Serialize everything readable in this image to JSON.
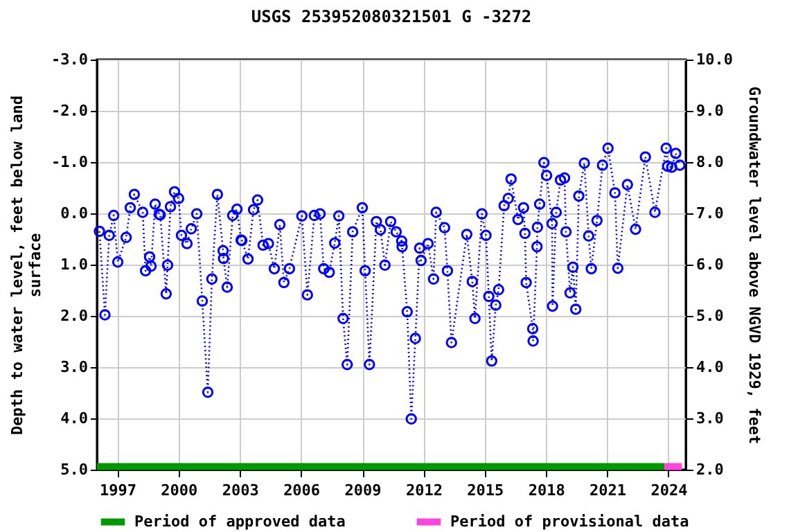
{
  "chart_data": {
    "type": "line",
    "title": "USGS 253952080321501 G  -3272",
    "xlabel": null,
    "ylabel": "Depth to water level, feet below land surface",
    "y2label": "Groundwater level above NGVD 1929, feet",
    "xlim": [
      1996,
      2024.85
    ],
    "xticks": [
      1997,
      2000,
      2003,
      2006,
      2009,
      2012,
      2015,
      2018,
      2021,
      2024
    ],
    "ylim": [
      5,
      -3
    ],
    "yticks": [
      {
        "value": -3,
        "label": "-3.0"
      },
      {
        "value": -2,
        "label": "-2.0"
      },
      {
        "value": -1,
        "label": "-1.0"
      },
      {
        "value": 0,
        "label": "0.0"
      },
      {
        "value": 1,
        "label": "1.0"
      },
      {
        "value": 2,
        "label": "2.0"
      },
      {
        "value": 3,
        "label": "3.0"
      },
      {
        "value": 4,
        "label": "4.0"
      },
      {
        "value": 5,
        "label": "5.0"
      }
    ],
    "y2lim": [
      2,
      10
    ],
    "y2ticks": [
      {
        "value": 2,
        "label": "2.0"
      },
      {
        "value": 3,
        "label": "3.0"
      },
      {
        "value": 4,
        "label": "4.0"
      },
      {
        "value": 5,
        "label": "5.0"
      },
      {
        "value": 6,
        "label": "6.0"
      },
      {
        "value": 7,
        "label": "7.0"
      },
      {
        "value": 8,
        "label": "8.0"
      },
      {
        "value": 9,
        "label": "9.0"
      },
      {
        "value": 10,
        "label": "10.0"
      }
    ],
    "grid": true,
    "legend": "bottom",
    "series": [
      {
        "color": "#0000ff",
        "marker": "circle",
        "line_style": "dotted",
        "x": [
          1996.12,
          1996.39,
          1996.6,
          1996.82,
          1997.02,
          1997.43,
          1997.63,
          1997.83,
          1998.24,
          1998.38,
          1998.58,
          1998.65,
          1998.85,
          1999.05,
          1999.1,
          1999.39,
          1999.46,
          1999.6,
          1999.8,
          2000.0,
          2000.14,
          2000.41,
          2000.62,
          2000.89,
          2001.16,
          2001.43,
          2001.63,
          2001.9,
          2002.18,
          2002.2,
          2002.38,
          2002.65,
          2002.86,
          2003.06,
          2003.1,
          2003.4,
          2003.67,
          2003.87,
          2004.14,
          2004.4,
          2004.69,
          2004.96,
          2005.16,
          2005.43,
          2006.04,
          2006.31,
          2006.65,
          2006.93,
          2007.11,
          2007.38,
          2007.65,
          2007.85,
          2008.06,
          2008.26,
          2008.53,
          2009.0,
          2009.14,
          2009.35,
          2009.69,
          2009.89,
          2010.11,
          2010.39,
          2010.66,
          2010.93,
          2010.95,
          2011.2,
          2011.4,
          2011.6,
          2011.81,
          2011.88,
          2012.22,
          2012.49,
          2012.62,
          2013.03,
          2013.17,
          2013.37,
          2014.12,
          2014.39,
          2014.52,
          2014.86,
          2015.06,
          2015.2,
          2015.34,
          2015.54,
          2015.68,
          2015.95,
          2016.15,
          2016.29,
          2016.63,
          2016.9,
          2016.97,
          2017.03,
          2017.35,
          2017.37,
          2017.56,
          2017.58,
          2017.69,
          2017.9,
          2018.03,
          2018.3,
          2018.32,
          2018.5,
          2018.71,
          2018.91,
          2018.98,
          2019.18,
          2019.32,
          2019.46,
          2019.61,
          2019.88,
          2020.09,
          2020.22,
          2020.5,
          2020.77,
          2021.04,
          2021.38,
          2021.52,
          2021.99,
          2022.39,
          2022.87,
          2023.34,
          2023.89,
          2023.96,
          2024.16,
          2024.36,
          2024.56
        ],
        "values": [
          0.35,
          1.98,
          0.43,
          0.04,
          0.95,
          0.47,
          -0.11,
          -0.37,
          -0.02,
          1.12,
          0.85,
          1.03,
          -0.18,
          0.02,
          0.03,
          1.57,
          1.01,
          -0.13,
          -0.42,
          -0.29,
          0.43,
          0.59,
          0.3,
          0.01,
          1.71,
          3.49,
          1.28,
          -0.37,
          0.73,
          0.88,
          1.44,
          0.04,
          -0.08,
          0.52,
          0.53,
          0.89,
          -0.07,
          -0.26,
          0.62,
          0.59,
          1.08,
          0.22,
          1.35,
          1.08,
          0.05,
          1.59,
          0.04,
          0.01,
          1.08,
          1.15,
          0.58,
          0.05,
          2.05,
          2.95,
          0.36,
          -0.11,
          1.12,
          2.95,
          0.16,
          0.32,
          1.01,
          0.16,
          0.36,
          0.54,
          0.65,
          1.92,
          4.01,
          2.44,
          0.68,
          0.92,
          0.59,
          1.28,
          -0.02,
          0.28,
          1.12,
          2.52,
          0.41,
          1.33,
          2.05,
          0.01,
          0.43,
          1.62,
          2.88,
          1.79,
          1.49,
          -0.15,
          -0.29,
          -0.67,
          0.12,
          -0.11,
          0.39,
          1.35,
          2.25,
          2.49,
          0.65,
          0.27,
          -0.18,
          -0.99,
          -0.74,
          0.2,
          1.81,
          -0.02,
          -0.65,
          -0.69,
          0.36,
          1.55,
          1.05,
          1.87,
          -0.34,
          -0.98,
          0.44,
          1.08,
          0.14,
          -0.94,
          -1.27,
          -0.4,
          1.07,
          -0.56,
          0.31,
          -1.1,
          -0.02,
          -1.27,
          -0.92,
          -0.9,
          -1.17,
          -0.94
        ]
      },
      {
        "name": "Period of approved data",
        "color": "#009900",
        "marker": "none",
        "line_style": "solid",
        "x": [
          1996,
          2023.8
        ],
        "values": [
          4.94,
          4.94
        ]
      },
      {
        "name": "Period of provisional data",
        "color": "#ff44dd",
        "marker": "none",
        "line_style": "solid",
        "x": [
          2023.8,
          2024.66
        ],
        "values": [
          4.94,
          4.94
        ]
      }
    ]
  }
}
